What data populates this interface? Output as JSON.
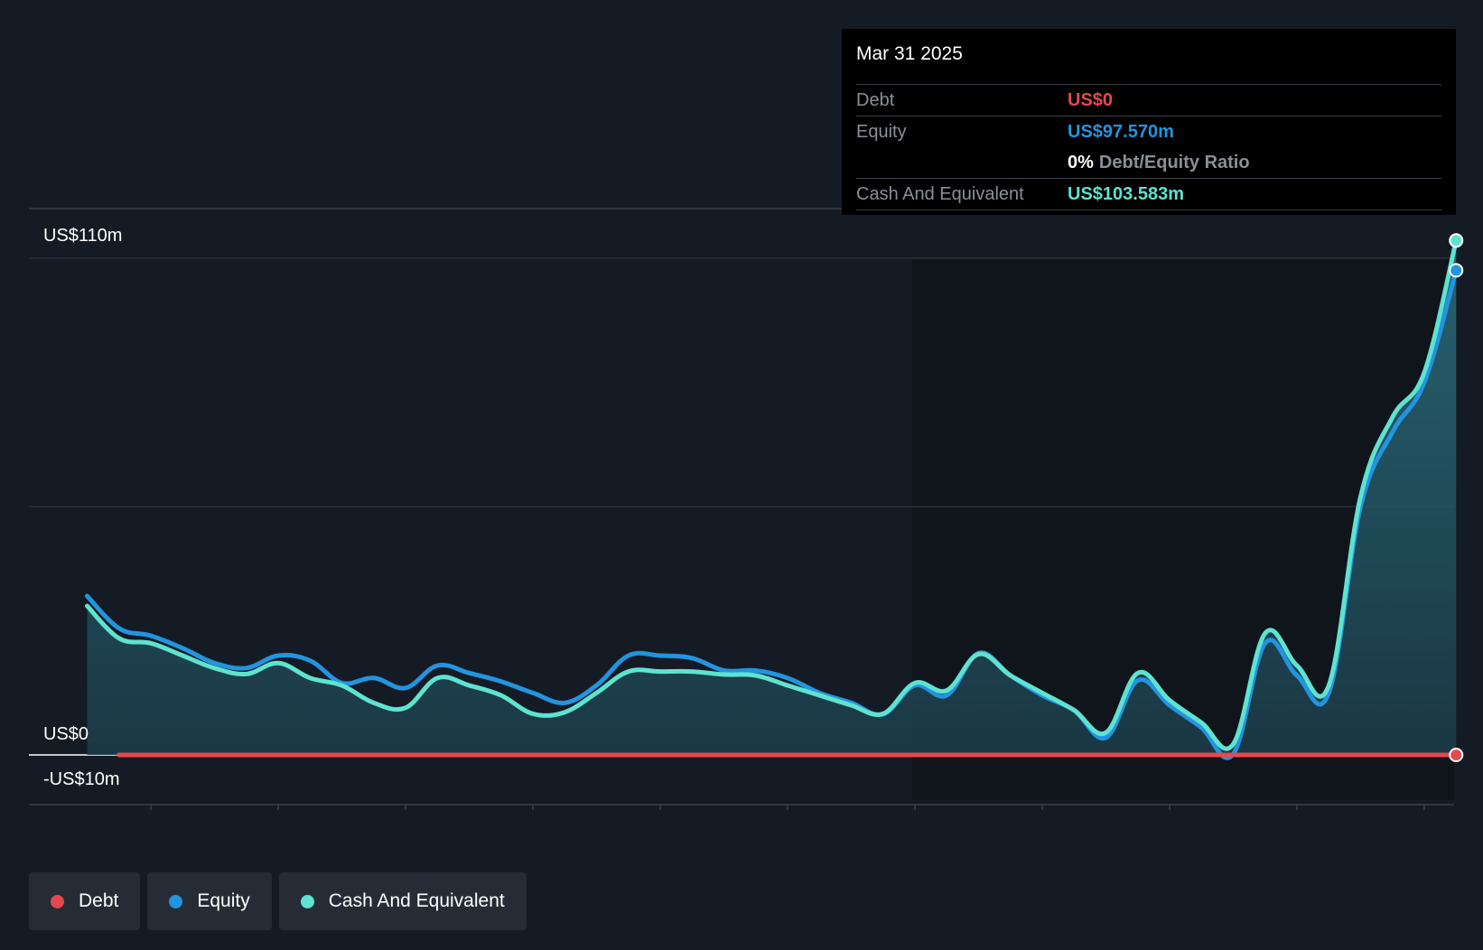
{
  "chart_data": {
    "type": "line",
    "y_unit": "US$m",
    "ylim": [
      -10,
      110
    ],
    "y_tick_labels": [
      {
        "value": 110,
        "label": "US$110m"
      },
      {
        "value": 0,
        "label": "US$0"
      },
      {
        "value": -10,
        "label": "-US$10m"
      }
    ],
    "x_ticks": [
      2015,
      2016,
      2017,
      2018,
      2019,
      2020,
      2021,
      2022,
      2023,
      2024,
      2025
    ],
    "xlim": [
      2014.05,
      2025.25
    ],
    "series": [
      {
        "name": "Debt",
        "color": "#e5484d",
        "x": [
          2014.75,
          2025.25
        ],
        "values": [
          0,
          0
        ]
      },
      {
        "name": "Equity",
        "color": "#2394df",
        "x": [
          2014.5,
          2014.75,
          2015.0,
          2015.25,
          2015.5,
          2015.75,
          2016.0,
          2016.25,
          2016.5,
          2016.75,
          2017.0,
          2017.25,
          2017.5,
          2017.75,
          2018.0,
          2018.25,
          2018.5,
          2018.75,
          2019.0,
          2019.25,
          2019.5,
          2019.75,
          2020.0,
          2020.25,
          2020.5,
          2020.75,
          2021.0,
          2021.25,
          2021.5,
          2021.75,
          2022.0,
          2022.25,
          2022.5,
          2022.75,
          2023.0,
          2023.25,
          2023.5,
          2023.75,
          2024.0,
          2024.25,
          2024.5,
          2024.75,
          2025.0,
          2025.25
        ],
        "values": [
          32.0,
          25.5,
          24.0,
          21.5,
          18.5,
          17.5,
          20.0,
          19.0,
          14.5,
          15.5,
          13.5,
          18.0,
          16.5,
          14.8,
          12.5,
          10.5,
          14.0,
          20.0,
          20.0,
          19.5,
          17.0,
          17.0,
          15.5,
          12.5,
          10.5,
          8.2,
          14.0,
          12.0,
          20.5,
          16.0,
          12.0,
          9.0,
          3.5,
          15.0,
          10.0,
          5.5,
          0.2,
          22.5,
          16.0,
          12.5,
          50.0,
          65.0,
          75.0,
          97.57
        ]
      },
      {
        "name": "Cash And Equivalent",
        "color": "#5ee3cf",
        "x": [
          2014.5,
          2014.75,
          2015.0,
          2015.25,
          2015.5,
          2015.75,
          2016.0,
          2016.25,
          2016.5,
          2016.75,
          2017.0,
          2017.25,
          2017.5,
          2017.75,
          2018.0,
          2018.25,
          2018.5,
          2018.75,
          2019.0,
          2019.25,
          2019.5,
          2019.75,
          2020.0,
          2020.25,
          2020.5,
          2020.75,
          2021.0,
          2021.25,
          2021.5,
          2021.75,
          2022.0,
          2022.25,
          2022.5,
          2022.75,
          2023.0,
          2023.25,
          2023.5,
          2023.75,
          2024.0,
          2024.25,
          2024.5,
          2024.75,
          2025.0,
          2025.25
        ],
        "values": [
          30.0,
          23.5,
          22.5,
          20.0,
          17.5,
          16.3,
          18.5,
          15.5,
          14.0,
          10.5,
          9.5,
          15.5,
          14.0,
          12.0,
          8.3,
          8.6,
          12.5,
          16.8,
          16.8,
          16.8,
          16.2,
          16.0,
          14.0,
          12.0,
          10.0,
          8.3,
          14.5,
          13.0,
          20.3,
          16.0,
          12.5,
          9.0,
          4.5,
          16.5,
          11.0,
          6.5,
          2.2,
          24.5,
          18.0,
          14.0,
          52.0,
          68.0,
          77.0,
          103.583
        ]
      }
    ],
    "legend": [
      "Debt",
      "Equity",
      "Cash And Equivalent"
    ],
    "legend_position": "bottom-left",
    "grid": true
  },
  "tooltip": {
    "date": "Mar 31 2025",
    "debt_label": "Debt",
    "debt_value": "US$0",
    "equity_label": "Equity",
    "equity_value": "US$97.570m",
    "ratio_value": "0%",
    "ratio_label": "Debt/Equity Ratio",
    "cash_label": "Cash And Equivalent",
    "cash_value": "US$103.583m"
  },
  "legend": {
    "debt": "Debt",
    "equity": "Equity",
    "cash": "Cash And Equivalent"
  },
  "colors": {
    "debt": "#e5484d",
    "equity": "#2394df",
    "cash": "#5ee3cf",
    "background": "#151b24"
  }
}
